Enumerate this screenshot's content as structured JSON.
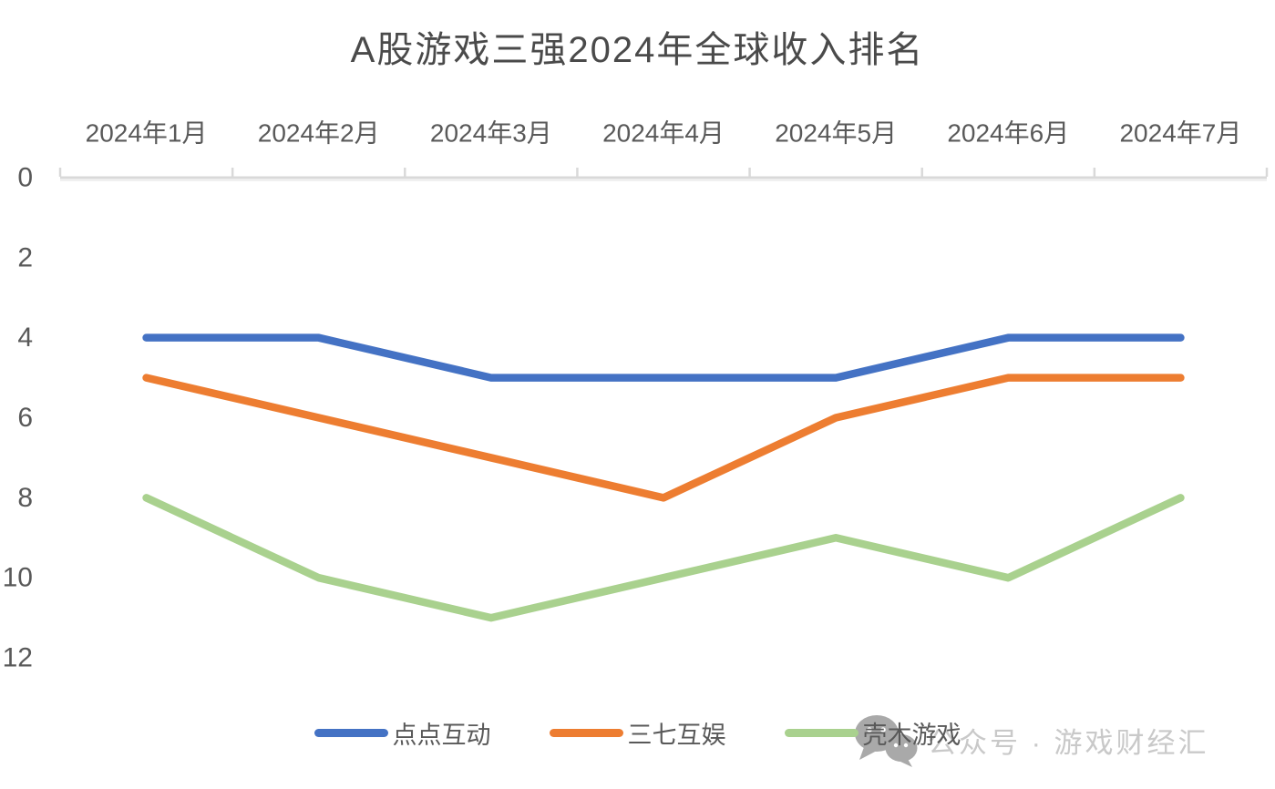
{
  "chart_data": {
    "type": "line",
    "title": "A股游戏三强2024年全球收入排名",
    "categories": [
      "2024年1月",
      "2024年2月",
      "2024年3月",
      "2024年4月",
      "2024年5月",
      "2024年6月",
      "2024年7月"
    ],
    "series": [
      {
        "name": "点点互动",
        "color": "#4472C4",
        "values": [
          4,
          4,
          5,
          5,
          5,
          4,
          4
        ]
      },
      {
        "name": "三七互娱",
        "color": "#ED7D31",
        "values": [
          5,
          6,
          7,
          8,
          6,
          5,
          5
        ]
      },
      {
        "name": "壳木游戏",
        "color": "#A9D18E",
        "values": [
          8,
          10,
          11,
          10,
          9,
          10,
          8
        ]
      }
    ],
    "xlabel": "",
    "ylabel": "",
    "y_axis": {
      "ticks": [
        0,
        2,
        4,
        6,
        8,
        10,
        12
      ],
      "min": 0,
      "max": 12,
      "inverted": true
    },
    "x_axis_position": "top",
    "legend_position": "bottom",
    "grid": false,
    "axis_color": "#D9D9D9",
    "axis_shadow_color": "#F0F0F0",
    "label_color": "#595959",
    "title_color": "#4A4A4A",
    "line_width": 8.5
  },
  "watermark": {
    "icon": "wechat-icon",
    "text": "公众号 · 游戏财经汇",
    "text_color": "#C9C9C9",
    "icon_color": "#A9A9A9"
  }
}
